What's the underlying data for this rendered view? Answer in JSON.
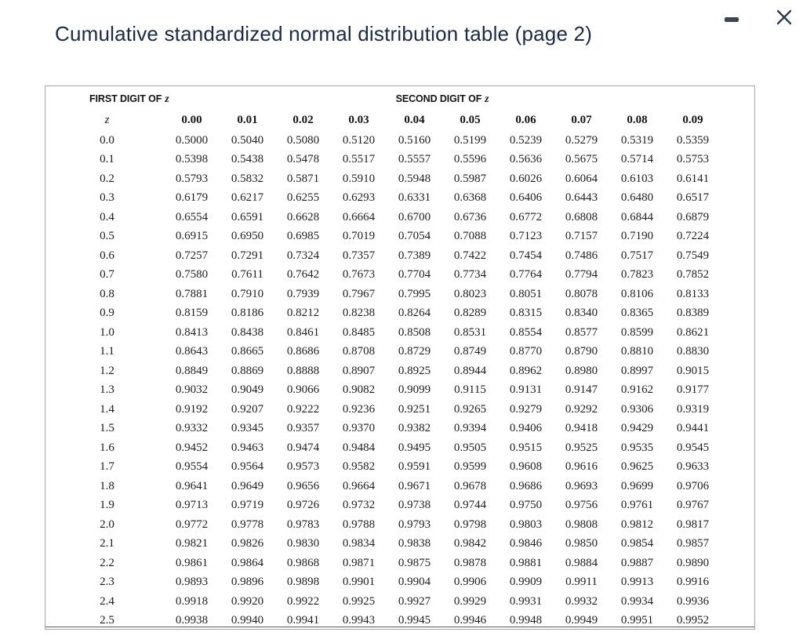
{
  "window": {
    "title": "Cumulative standardized normal distribution table (page 2)",
    "controls": {
      "minimize_icon": "minus",
      "close_icon": "x"
    }
  },
  "colors": {
    "title_text": "#1b2a45",
    "icon": "#333d49",
    "panel_border": "#a6a6a6",
    "table_text": "#1e1e1e"
  },
  "table": {
    "group_headers": {
      "first": "FIRST DIGIT OF",
      "second": "SECOND DIGIT OF",
      "z_symbol": "z"
    },
    "z_column_header": "z",
    "column_headers": [
      "0.00",
      "0.01",
      "0.02",
      "0.03",
      "0.04",
      "0.05",
      "0.06",
      "0.07",
      "0.08",
      "0.09"
    ],
    "rows": [
      {
        "z": "0.0",
        "values": [
          "0.5000",
          "0.5040",
          "0.5080",
          "0.5120",
          "0.5160",
          "0.5199",
          "0.5239",
          "0.5279",
          "0.5319",
          "0.5359"
        ]
      },
      {
        "z": "0.1",
        "values": [
          "0.5398",
          "0.5438",
          "0.5478",
          "0.5517",
          "0.5557",
          "0.5596",
          "0.5636",
          "0.5675",
          "0.5714",
          "0.5753"
        ]
      },
      {
        "z": "0.2",
        "values": [
          "0.5793",
          "0.5832",
          "0.5871",
          "0.5910",
          "0.5948",
          "0.5987",
          "0.6026",
          "0.6064",
          "0.6103",
          "0.6141"
        ]
      },
      {
        "z": "0.3",
        "values": [
          "0.6179",
          "0.6217",
          "0.6255",
          "0.6293",
          "0.6331",
          "0.6368",
          "0.6406",
          "0.6443",
          "0.6480",
          "0.6517"
        ]
      },
      {
        "z": "0.4",
        "values": [
          "0.6554",
          "0.6591",
          "0.6628",
          "0.6664",
          "0.6700",
          "0.6736",
          "0.6772",
          "0.6808",
          "0.6844",
          "0.6879"
        ]
      },
      {
        "z": "0.5",
        "values": [
          "0.6915",
          "0.6950",
          "0.6985",
          "0.7019",
          "0.7054",
          "0.7088",
          "0.7123",
          "0.7157",
          "0.7190",
          "0.7224"
        ]
      },
      {
        "z": "0.6",
        "values": [
          "0.7257",
          "0.7291",
          "0.7324",
          "0.7357",
          "0.7389",
          "0.7422",
          "0.7454",
          "0.7486",
          "0.7517",
          "0.7549"
        ]
      },
      {
        "z": "0.7",
        "values": [
          "0.7580",
          "0.7611",
          "0.7642",
          "0.7673",
          "0.7704",
          "0.7734",
          "0.7764",
          "0.7794",
          "0.7823",
          "0.7852"
        ]
      },
      {
        "z": "0.8",
        "values": [
          "0.7881",
          "0.7910",
          "0.7939",
          "0.7967",
          "0.7995",
          "0.8023",
          "0.8051",
          "0.8078",
          "0.8106",
          "0.8133"
        ]
      },
      {
        "z": "0.9",
        "values": [
          "0.8159",
          "0.8186",
          "0.8212",
          "0.8238",
          "0.8264",
          "0.8289",
          "0.8315",
          "0.8340",
          "0.8365",
          "0.8389"
        ]
      },
      {
        "z": "1.0",
        "values": [
          "0.8413",
          "0.8438",
          "0.8461",
          "0.8485",
          "0.8508",
          "0.8531",
          "0.8554",
          "0.8577",
          "0.8599",
          "0.8621"
        ]
      },
      {
        "z": "1.1",
        "values": [
          "0.8643",
          "0.8665",
          "0.8686",
          "0.8708",
          "0.8729",
          "0.8749",
          "0.8770",
          "0.8790",
          "0.8810",
          "0.8830"
        ]
      },
      {
        "z": "1.2",
        "values": [
          "0.8849",
          "0.8869",
          "0.8888",
          "0.8907",
          "0.8925",
          "0.8944",
          "0.8962",
          "0.8980",
          "0.8997",
          "0.9015"
        ]
      },
      {
        "z": "1.3",
        "values": [
          "0.9032",
          "0.9049",
          "0.9066",
          "0.9082",
          "0.9099",
          "0.9115",
          "0.9131",
          "0.9147",
          "0.9162",
          "0.9177"
        ]
      },
      {
        "z": "1.4",
        "values": [
          "0.9192",
          "0.9207",
          "0.9222",
          "0.9236",
          "0.9251",
          "0.9265",
          "0.9279",
          "0.9292",
          "0.9306",
          "0.9319"
        ]
      },
      {
        "z": "1.5",
        "values": [
          "0.9332",
          "0.9345",
          "0.9357",
          "0.9370",
          "0.9382",
          "0.9394",
          "0.9406",
          "0.9418",
          "0.9429",
          "0.9441"
        ]
      },
      {
        "z": "1.6",
        "values": [
          "0.9452",
          "0.9463",
          "0.9474",
          "0.9484",
          "0.9495",
          "0.9505",
          "0.9515",
          "0.9525",
          "0.9535",
          "0.9545"
        ]
      },
      {
        "z": "1.7",
        "values": [
          "0.9554",
          "0.9564",
          "0.9573",
          "0.9582",
          "0.9591",
          "0.9599",
          "0.9608",
          "0.9616",
          "0.9625",
          "0.9633"
        ]
      },
      {
        "z": "1.8",
        "values": [
          "0.9641",
          "0.9649",
          "0.9656",
          "0.9664",
          "0.9671",
          "0.9678",
          "0.9686",
          "0.9693",
          "0.9699",
          "0.9706"
        ]
      },
      {
        "z": "1.9",
        "values": [
          "0.9713",
          "0.9719",
          "0.9726",
          "0.9732",
          "0.9738",
          "0.9744",
          "0.9750",
          "0.9756",
          "0.9761",
          "0.9767"
        ]
      },
      {
        "z": "2.0",
        "values": [
          "0.9772",
          "0.9778",
          "0.9783",
          "0.9788",
          "0.9793",
          "0.9798",
          "0.9803",
          "0.9808",
          "0.9812",
          "0.9817"
        ]
      },
      {
        "z": "2.1",
        "values": [
          "0.9821",
          "0.9826",
          "0.9830",
          "0.9834",
          "0.9838",
          "0.9842",
          "0.9846",
          "0.9850",
          "0.9854",
          "0.9857"
        ]
      },
      {
        "z": "2.2",
        "values": [
          "0.9861",
          "0.9864",
          "0.9868",
          "0.9871",
          "0.9875",
          "0.9878",
          "0.9881",
          "0.9884",
          "0.9887",
          "0.9890"
        ]
      },
      {
        "z": "2.3",
        "values": [
          "0.9893",
          "0.9896",
          "0.9898",
          "0.9901",
          "0.9904",
          "0.9906",
          "0.9909",
          "0.9911",
          "0.9913",
          "0.9916"
        ]
      },
      {
        "z": "2.4",
        "values": [
          "0.9918",
          "0.9920",
          "0.9922",
          "0.9925",
          "0.9927",
          "0.9929",
          "0.9931",
          "0.9932",
          "0.9934",
          "0.9936"
        ]
      },
      {
        "z": "2.5",
        "values": [
          "0.9938",
          "0.9940",
          "0.9941",
          "0.9943",
          "0.9945",
          "0.9946",
          "0.9948",
          "0.9949",
          "0.9951",
          "0.9952"
        ]
      }
    ]
  }
}
